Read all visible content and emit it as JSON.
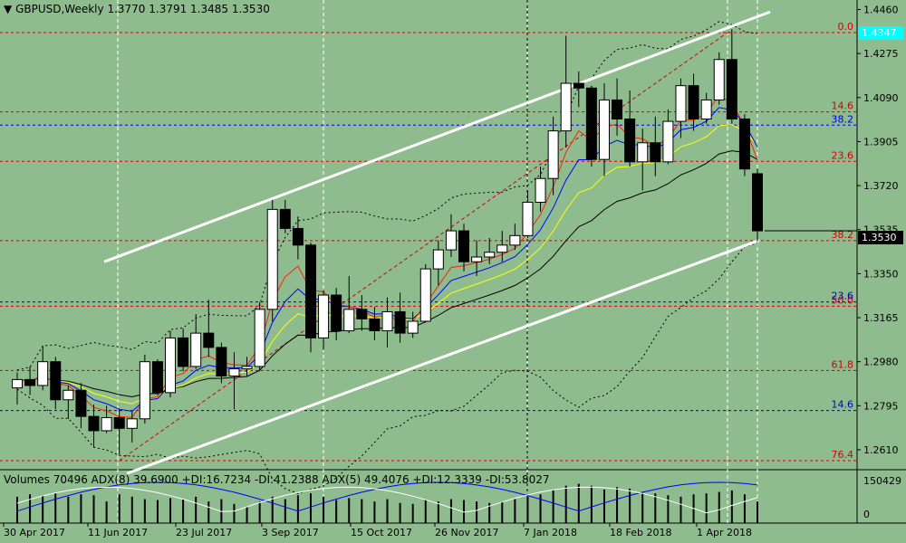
{
  "header": {
    "symbol_label": "GBPUSD,Weekly",
    "ohlc": "1.3770 1.3791 1.3485 1.3530",
    "indicator_text": "Volumes 70496   ADX(8) 39.6900 +DI:16.7234 -DI:41.2388   ADX(5) 49.4076 +DI:12.3339 -DI:53.8027"
  },
  "chart_data": {
    "type": "candlestick",
    "title": "GBPUSD,Weekly",
    "ylim": [
      1.253,
      1.45
    ],
    "price_ticks": [
      "1.4460",
      "1.4275",
      "1.4090",
      "1.3905",
      "1.3720",
      "1.3535",
      "1.3350",
      "1.3165",
      "1.2980",
      "1.2795",
      "1.2610"
    ],
    "x_labels": [
      "30 Apr 2017",
      "11 Jun 2017",
      "23 Jul 2017",
      "3 Sep 2017",
      "15 Oct 2017",
      "26 Nov 2017",
      "7 Jan 2018",
      "18 Feb 2018",
      "1 Apr 2018"
    ],
    "current_price": "1.3530",
    "bid_label": "1.4347",
    "fib_red": [
      {
        "label": "0.0",
        "price": 1.4363
      },
      {
        "label": "14.6",
        "price": 1.403
      },
      {
        "label": "23.6",
        "price": 1.3822
      },
      {
        "label": "38.2",
        "price": 1.3489
      },
      {
        "label": "50.0",
        "price": 1.3213
      },
      {
        "label": "61.8",
        "price": 1.2943
      },
      {
        "label": "76.4",
        "price": 1.2564
      }
    ],
    "fib_blue": [
      {
        "label": "38.2",
        "price": 1.3974
      },
      {
        "label": "23.6",
        "price": 1.3231
      },
      {
        "label": "14.6",
        "price": 1.2775
      }
    ],
    "candles": [
      [
        1.287,
        1.2935,
        1.28,
        1.2905
      ],
      [
        1.2905,
        1.296,
        1.284,
        1.288
      ],
      [
        1.288,
        1.3045,
        1.286,
        1.298
      ],
      [
        1.298,
        1.3,
        1.278,
        1.282
      ],
      [
        1.282,
        1.288,
        1.274,
        1.286
      ],
      [
        1.286,
        1.289,
        1.27,
        1.275
      ],
      [
        1.275,
        1.28,
        1.262,
        1.269
      ],
      [
        1.269,
        1.2795,
        1.268,
        1.2745
      ],
      [
        1.2745,
        1.278,
        1.259,
        1.27
      ],
      [
        1.27,
        1.277,
        1.264,
        1.274
      ],
      [
        1.274,
        1.301,
        1.272,
        1.298
      ],
      [
        1.298,
        1.299,
        1.284,
        1.285
      ],
      [
        1.285,
        1.311,
        1.283,
        1.308
      ],
      [
        1.308,
        1.312,
        1.294,
        1.296
      ],
      [
        1.296,
        1.318,
        1.295,
        1.31
      ],
      [
        1.31,
        1.324,
        1.3,
        1.304
      ],
      [
        1.304,
        1.306,
        1.289,
        1.292
      ],
      [
        1.292,
        1.302,
        1.278,
        1.295
      ],
      [
        1.295,
        1.3,
        1.292,
        1.296
      ],
      [
        1.296,
        1.323,
        1.294,
        1.32
      ],
      [
        1.32,
        1.366,
        1.315,
        1.362
      ],
      [
        1.362,
        1.366,
        1.352,
        1.354
      ],
      [
        1.354,
        1.359,
        1.341,
        1.347
      ],
      [
        1.347,
        1.348,
        1.302,
        1.308
      ],
      [
        1.308,
        1.328,
        1.303,
        1.326
      ],
      [
        1.326,
        1.329,
        1.307,
        1.311
      ],
      [
        1.311,
        1.334,
        1.31,
        1.32
      ],
      [
        1.32,
        1.326,
        1.311,
        1.316
      ],
      [
        1.316,
        1.321,
        1.307,
        1.311
      ],
      [
        1.311,
        1.325,
        1.304,
        1.319
      ],
      [
        1.319,
        1.327,
        1.306,
        1.31
      ],
      [
        1.31,
        1.319,
        1.308,
        1.315
      ],
      [
        1.315,
        1.339,
        1.315,
        1.337
      ],
      [
        1.337,
        1.349,
        1.33,
        1.345
      ],
      [
        1.345,
        1.36,
        1.342,
        1.353
      ],
      [
        1.353,
        1.356,
        1.336,
        1.34
      ],
      [
        1.34,
        1.349,
        1.334,
        1.342
      ],
      [
        1.342,
        1.35,
        1.339,
        1.344
      ],
      [
        1.344,
        1.353,
        1.34,
        1.347
      ],
      [
        1.347,
        1.356,
        1.345,
        1.351
      ],
      [
        1.351,
        1.37,
        1.35,
        1.365
      ],
      [
        1.365,
        1.38,
        1.361,
        1.375
      ],
      [
        1.375,
        1.401,
        1.368,
        1.395
      ],
      [
        1.395,
        1.435,
        1.388,
        1.415
      ],
      [
        1.415,
        1.42,
        1.405,
        1.413
      ],
      [
        1.413,
        1.414,
        1.38,
        1.383
      ],
      [
        1.383,
        1.415,
        1.376,
        1.408
      ],
      [
        1.408,
        1.417,
        1.393,
        1.4
      ],
      [
        1.4,
        1.412,
        1.38,
        1.382
      ],
      [
        1.382,
        1.396,
        1.37,
        1.39
      ],
      [
        1.39,
        1.401,
        1.376,
        1.382
      ],
      [
        1.382,
        1.404,
        1.381,
        1.399
      ],
      [
        1.399,
        1.417,
        1.392,
        1.414
      ],
      [
        1.414,
        1.419,
        1.395,
        1.4
      ],
      [
        1.4,
        1.411,
        1.398,
        1.408
      ],
      [
        1.408,
        1.428,
        1.406,
        1.425
      ],
      [
        1.425,
        1.4376,
        1.398,
        1.4
      ],
      [
        1.4,
        1.402,
        1.376,
        1.379
      ],
      [
        1.377,
        1.3791,
        1.3485,
        1.353
      ]
    ],
    "volumes": [
      0.55,
      0.6,
      0.58,
      0.62,
      0.55,
      0.6,
      0.58,
      0.45,
      0.6,
      0.55,
      0.5,
      0.48,
      0.52,
      0.5,
      0.55,
      0.45,
      0.5,
      0.4,
      0.35,
      0.45,
      0.55,
      0.5,
      0.58,
      0.62,
      0.55,
      0.48,
      0.52,
      0.5,
      0.45,
      0.5,
      0.42,
      0.4,
      0.48,
      0.45,
      0.5,
      0.48,
      0.45,
      0.42,
      0.45,
      0.5,
      0.55,
      0.6,
      0.7,
      0.78,
      0.82,
      0.78,
      0.7,
      0.75,
      0.72,
      0.65,
      0.62,
      0.58,
      0.55,
      0.6,
      0.62,
      0.65,
      0.68,
      0.6,
      0.45
    ],
    "vol_axis": [
      "150429",
      "0"
    ]
  }
}
